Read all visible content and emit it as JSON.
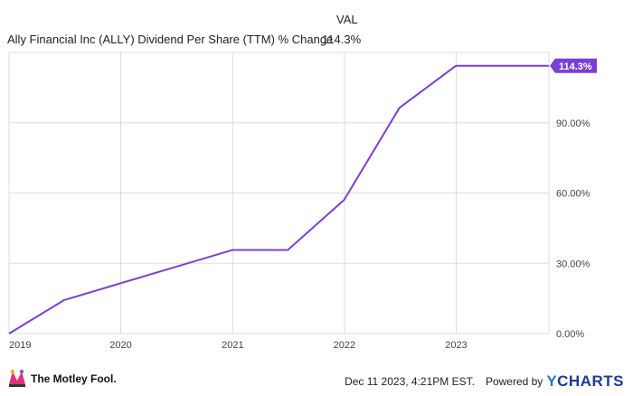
{
  "legend": {
    "header": "VAL",
    "series_label": "Ally Financial Inc (ALLY) Dividend Per Share (TTM) % Change",
    "series_value": "114.3%"
  },
  "colors": {
    "line": "#7b3fd6",
    "grid": "#dddddd",
    "axis_text": "#444444"
  },
  "chart_data": {
    "type": "line",
    "title": "",
    "xlabel": "",
    "ylabel": "",
    "x_ticks": [
      "2019",
      "2020",
      "2021",
      "2022",
      "2023"
    ],
    "y_ticks": [
      "0.00%",
      "30.00%",
      "60.00%",
      "90.00%"
    ],
    "y_tick_values": [
      0,
      30,
      60,
      90
    ],
    "ylim": [
      0,
      120
    ],
    "xlim": [
      "2019-01-01",
      "2023-10-31"
    ],
    "grid": true,
    "series": [
      {
        "name": "Ally Financial Inc (ALLY) Dividend Per Share (TTM) % Change",
        "x": [
          "2019-01-01",
          "2019-06-30",
          "2020-12-31",
          "2021-06-30",
          "2021-12-31",
          "2022-06-30",
          "2022-12-31",
          "2023-10-31"
        ],
        "y": [
          0,
          14.3,
          35.7,
          35.7,
          57.1,
          96.4,
          114.3,
          114.3
        ]
      }
    ],
    "last_value_label": "114.3%"
  },
  "footer": {
    "brand": "The Motley Fool.",
    "timestamp": "Dec 11 2023, 4:21PM EST.",
    "powered_by": "Powered by",
    "provider_prefix": "Y",
    "provider_rest": "CHARTS"
  }
}
